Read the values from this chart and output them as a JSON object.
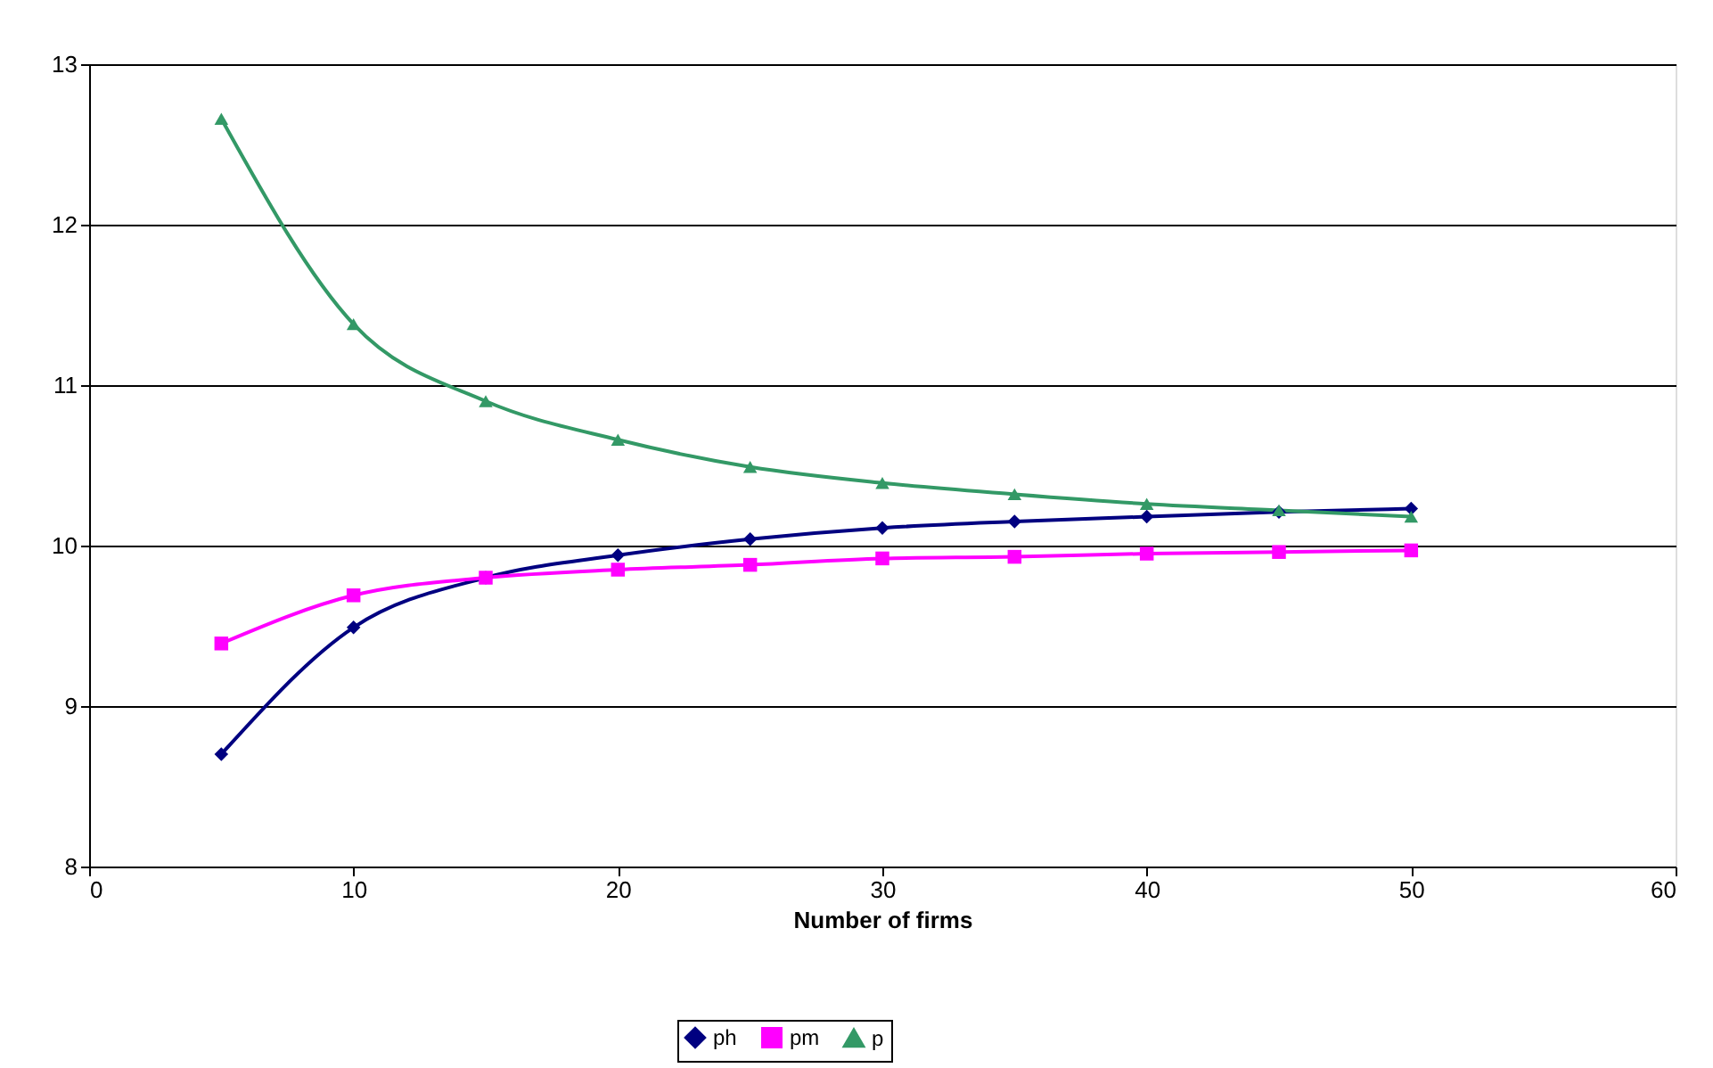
{
  "chart_data": {
    "type": "line",
    "xlabel": "Number of firms",
    "x": [
      5,
      10,
      15,
      20,
      25,
      30,
      35,
      40,
      45,
      50
    ],
    "series": [
      {
        "name": "ph",
        "color": "#000080",
        "marker": "diamond",
        "values": [
          8.7,
          9.49,
          9.8,
          9.94,
          10.04,
          10.11,
          10.15,
          10.18,
          10.21,
          10.23
        ]
      },
      {
        "name": "pm",
        "color": "#ff00ff",
        "marker": "square",
        "values": [
          9.39,
          9.69,
          9.8,
          9.85,
          9.88,
          9.92,
          9.93,
          9.95,
          9.96,
          9.97
        ]
      },
      {
        "name": "p",
        "color": "#339966",
        "marker": "triangle",
        "values": [
          12.66,
          11.38,
          10.9,
          10.66,
          10.49,
          10.39,
          10.32,
          10.26,
          10.22,
          10.18
        ]
      }
    ],
    "xlim": [
      0,
      60
    ],
    "xticks": [
      0,
      10,
      20,
      30,
      40,
      50,
      60
    ],
    "ylim": [
      8,
      13
    ],
    "yticks": [
      8,
      9,
      10,
      11,
      12,
      13
    ],
    "grid": "y",
    "legend": "bottom",
    "line_style": "solid"
  }
}
